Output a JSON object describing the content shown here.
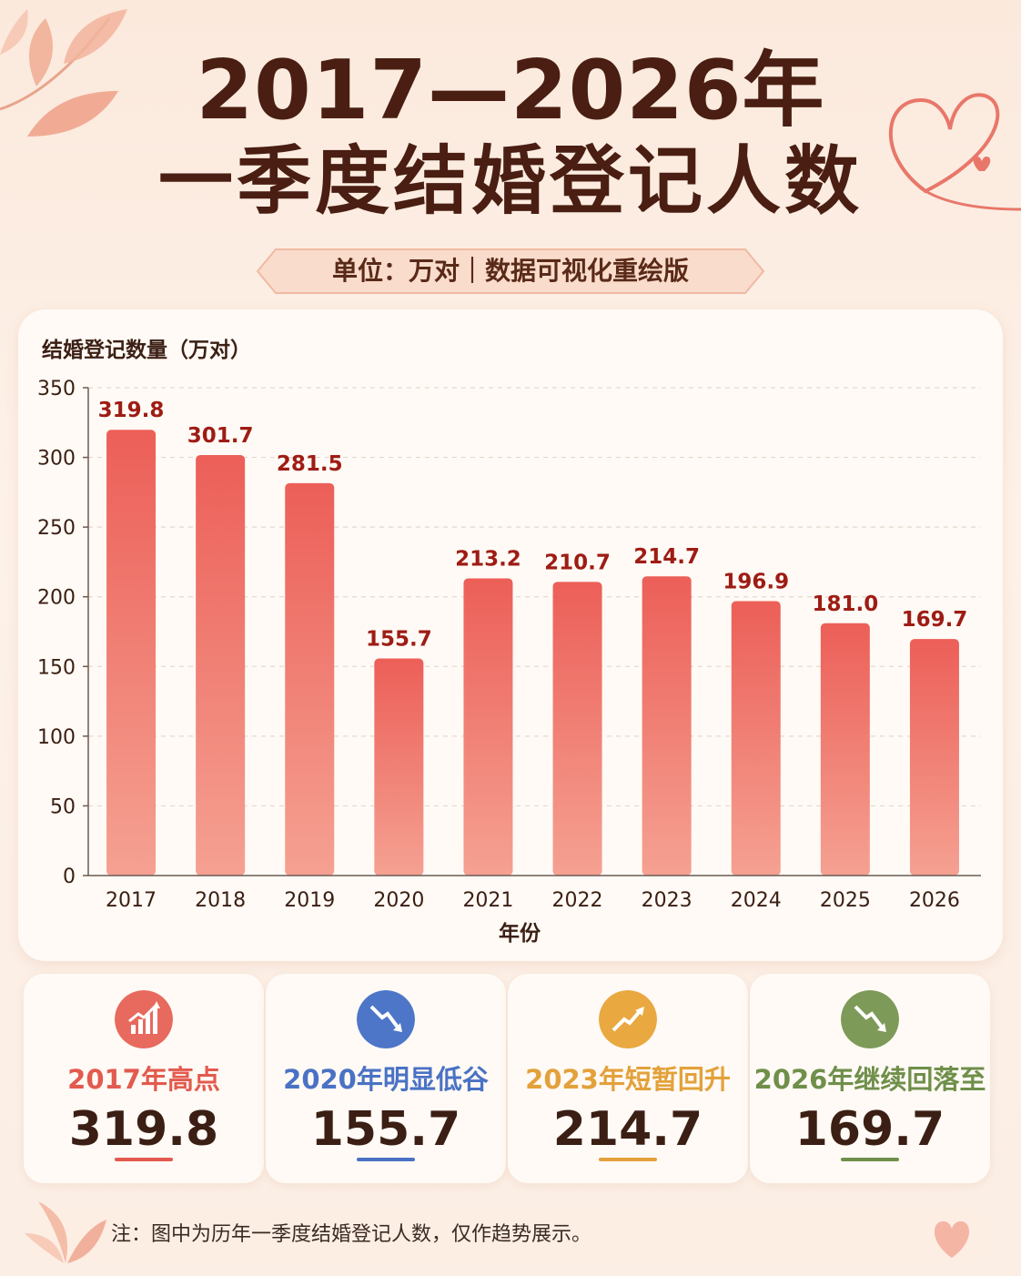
{
  "title": {
    "line1": "2017—2026年",
    "line2": "一季度结婚登记人数"
  },
  "subtitle": "单位：万对｜数据可视化重绘版",
  "chart_data": {
    "type": "bar",
    "ylabel": "结婚登记数量（万对）",
    "xlabel": "年份",
    "ylim": [
      0,
      350
    ],
    "yticks": [
      0,
      50,
      100,
      150,
      200,
      250,
      300,
      350
    ],
    "categories": [
      "2017",
      "2018",
      "2019",
      "2020",
      "2021",
      "2022",
      "2023",
      "2024",
      "2025",
      "2026"
    ],
    "values": [
      319.8,
      301.7,
      281.5,
      155.7,
      213.2,
      210.7,
      214.7,
      196.9,
      181.0,
      169.7
    ],
    "value_labels": [
      "319.8",
      "301.7",
      "281.5",
      "155.7",
      "213.2",
      "210.7",
      "214.7",
      "196.9",
      "181.0",
      "169.7"
    ],
    "grid": true,
    "colors": {
      "bar_top": "#ec5f58",
      "bar_bottom": "#f5a192",
      "value_label": "#9e1c14"
    }
  },
  "stats": [
    {
      "label": "2017年高点",
      "value": "319.8",
      "color": "#e35a4e",
      "icon": "rising-bar-chart-icon"
    },
    {
      "label": "2020年明显低谷",
      "value": "155.7",
      "color": "#4a72c4",
      "icon": "falling-arrow-icon"
    },
    {
      "label": "2023年短暂回升",
      "value": "214.7",
      "color": "#e3a13b",
      "icon": "rising-arrow-icon"
    },
    {
      "label": "2026年继续回落至",
      "value": "169.7",
      "color": "#6f8f4a",
      "icon": "falling-arrow-icon"
    }
  ],
  "note": "注：图中为历年一季度结婚登记人数，仅作趋势展示。"
}
